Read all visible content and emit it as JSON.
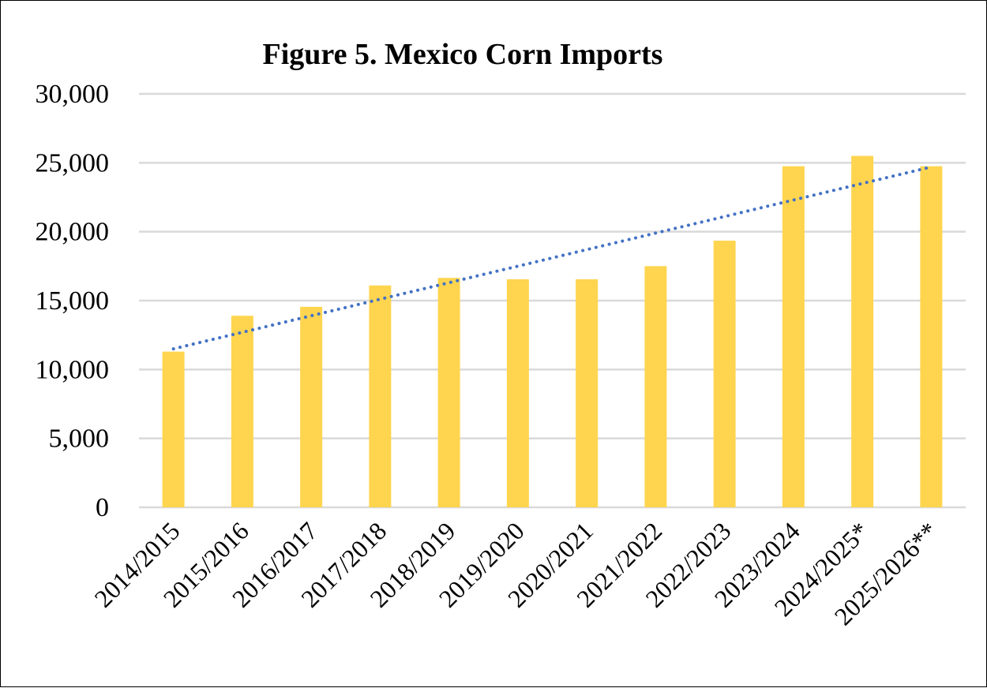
{
  "chart_data": {
    "type": "bar",
    "title": "Figure 5. Mexico Corn Imports",
    "categories": [
      "2014/2015",
      "2015/2016",
      "2016/2017",
      "2017/2018",
      "2018/2019",
      "2019/2020",
      "2020/2021",
      "2021/2022",
      "2022/2023",
      "2023/2024",
      "2024/2025*",
      "2025/2026**"
    ],
    "values": [
      11300,
      13900,
      14550,
      16100,
      16650,
      16550,
      16550,
      17500,
      19350,
      24750,
      25500,
      24750
    ],
    "ylim": [
      0,
      30000
    ],
    "yticks": [
      0,
      5000,
      10000,
      15000,
      20000,
      25000,
      30000
    ],
    "ytick_labels": [
      "0",
      "5,000",
      "10,000",
      "15,000",
      "20,000",
      "25,000",
      "30,000"
    ],
    "xlabel": "",
    "ylabel": "",
    "grid": true,
    "legend": "none",
    "trendline": {
      "type": "linear",
      "style": "dotted",
      "start_value": 11500,
      "end_value": 24700
    },
    "colors": {
      "bar": "#FFD54F",
      "trendline": "#4472C4",
      "grid": "#D9D9D9"
    }
  }
}
